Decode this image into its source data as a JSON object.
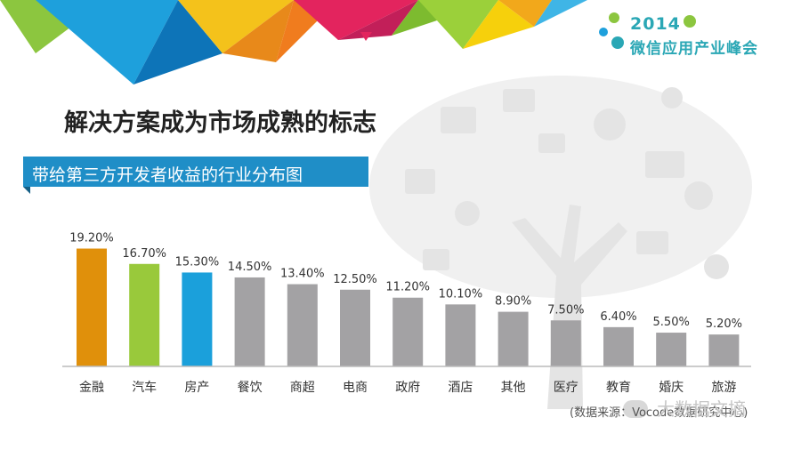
{
  "logo": {
    "year": "2014",
    "name": "微信应用产业峰会"
  },
  "heading": "解决方案成为市场成熟的标志",
  "banner": "带给第三方开发者收益的行业分布图",
  "source": "(数据来源：Vocode数据研究中心)",
  "watermark": "大数据文摘",
  "colors": {
    "highlight1": "#e0900b",
    "highlight2": "#99c93b",
    "highlight3": "#1ba0db",
    "default": "#a3a2a4",
    "banner": "#1f8ec7"
  },
  "chart_data": {
    "type": "bar",
    "title": "带给第三方开发者收益的行业分布图",
    "categories": [
      "金融",
      "汽车",
      "房产",
      "餐饮",
      "商超",
      "电商",
      "政府",
      "酒店",
      "其他",
      "医疗",
      "教育",
      "婚庆",
      "旅游"
    ],
    "values": [
      19.2,
      16.7,
      15.3,
      14.5,
      13.4,
      12.5,
      11.2,
      10.1,
      8.9,
      7.5,
      6.4,
      5.5,
      5.2
    ],
    "value_labels": [
      "19.20%",
      "16.70%",
      "15.30%",
      "14.50%",
      "13.40%",
      "12.50%",
      "11.20%",
      "10.10%",
      "8.90%",
      "7.50%",
      "6.40%",
      "5.50%",
      "5.20%"
    ],
    "bar_colors": [
      "#e0900b",
      "#99c93b",
      "#1ba0db",
      "#a3a2a4",
      "#a3a2a4",
      "#a3a2a4",
      "#a3a2a4",
      "#a3a2a4",
      "#a3a2a4",
      "#a3a2a4",
      "#a3a2a4",
      "#a3a2a4",
      "#a3a2a4"
    ],
    "ylim": [
      0,
      20
    ],
    "grid": false
  }
}
